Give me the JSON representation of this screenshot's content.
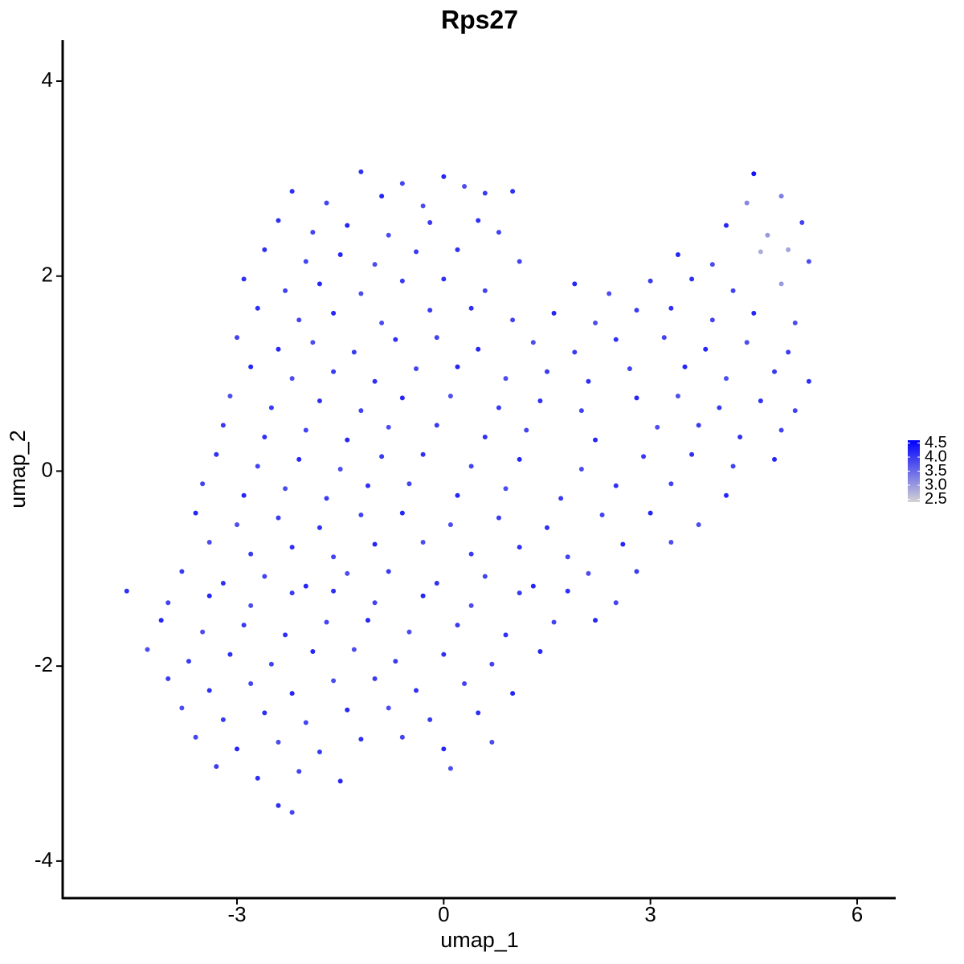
{
  "chart_data": {
    "type": "scatter",
    "title": "Rps27",
    "x_label": "umap_1",
    "y_label": "umap_2",
    "xlim": [
      -5.53,
      6.56
    ],
    "ylim": [
      -4.38,
      4.42
    ],
    "xticks": [
      -3,
      0,
      3,
      6
    ],
    "yticks": [
      -4,
      -2,
      0,
      2,
      4
    ],
    "color_low": "#d3d3d3",
    "color_high": "#0000ff",
    "color_lim": [
      2.4,
      4.6
    ],
    "color_ticks": [
      2.5,
      {
        "value": 3,
        "label": "3.0"
      },
      3.5,
      {
        "value": 4,
        "label": "4.0"
      },
      4.5
    ],
    "x": [
      -1.2,
      -0.6,
      0.0,
      0.3,
      4.5,
      -2.2,
      -1.7,
      -0.9,
      -0.3,
      0.6,
      1.0,
      4.4,
      4.9,
      -2.4,
      -1.9,
      -1.4,
      -0.8,
      -0.2,
      0.5,
      0.8,
      4.1,
      4.7,
      5.2,
      -2.6,
      -2.0,
      -1.5,
      -1.0,
      -0.4,
      0.2,
      1.1,
      3.4,
      3.9,
      4.6,
      5.0,
      5.3,
      -2.9,
      -2.3,
      -1.8,
      -1.2,
      -0.6,
      0.0,
      0.6,
      1.9,
      2.4,
      3.0,
      3.6,
      4.2,
      4.9,
      -2.7,
      -2.1,
      -1.6,
      -0.9,
      -0.2,
      0.4,
      1.0,
      1.6,
      2.2,
      2.8,
      3.3,
      3.9,
      4.5,
      5.1,
      -3.0,
      -2.4,
      -1.9,
      -1.3,
      -0.7,
      -0.1,
      0.5,
      1.3,
      1.9,
      2.5,
      3.2,
      3.8,
      4.4,
      5.0,
      -2.8,
      -2.2,
      -1.6,
      -1.0,
      -0.4,
      0.2,
      0.9,
      1.5,
      2.1,
      2.7,
      3.5,
      4.1,
      4.8,
      5.3,
      -3.1,
      -2.5,
      -1.8,
      -1.2,
      -0.6,
      0.1,
      0.8,
      1.4,
      2.0,
      2.8,
      3.4,
      4.0,
      4.6,
      5.1,
      -3.2,
      -2.6,
      -2.0,
      -1.4,
      -0.8,
      -0.1,
      0.6,
      1.2,
      2.2,
      3.1,
      3.7,
      4.3,
      4.9,
      -3.3,
      -2.7,
      -2.1,
      -1.5,
      -0.9,
      -0.3,
      0.4,
      1.1,
      2.0,
      2.9,
      3.6,
      4.2,
      4.8,
      -3.5,
      -2.9,
      -2.3,
      -1.7,
      -1.1,
      -0.5,
      0.2,
      0.9,
      1.7,
      2.5,
      3.3,
      4.1,
      -3.6,
      -3.0,
      -2.4,
      -1.8,
      -1.2,
      -0.6,
      0.1,
      0.8,
      1.5,
      2.3,
      3.0,
      3.7,
      -3.4,
      -2.8,
      -2.2,
      -1.6,
      -1.0,
      -0.3,
      0.4,
      1.1,
      1.8,
      2.6,
      3.3,
      -3.8,
      -3.2,
      -2.6,
      -2.0,
      -1.4,
      -0.8,
      -0.1,
      0.6,
      1.3,
      2.1,
      2.8,
      -4.6,
      -4.0,
      -3.4,
      -2.8,
      -2.2,
      -1.6,
      -1.0,
      -0.3,
      0.4,
      1.1,
      1.8,
      2.5,
      -4.1,
      -3.5,
      -2.9,
      -2.3,
      -1.7,
      -1.1,
      -0.5,
      0.2,
      0.9,
      1.6,
      2.2,
      -4.3,
      -3.7,
      -3.1,
      -2.5,
      -1.9,
      -1.3,
      -0.7,
      0.0,
      0.7,
      1.4,
      -4.0,
      -3.4,
      -2.8,
      -2.2,
      -1.6,
      -1.0,
      -0.4,
      0.3,
      1.0,
      -3.8,
      -3.2,
      -2.6,
      -2.0,
      -1.4,
      -0.8,
      -0.2,
      0.5,
      -3.6,
      -3.0,
      -2.4,
      -1.8,
      -1.2,
      -0.6,
      0.0,
      0.7,
      -3.3,
      -2.7,
      -2.1,
      -1.5,
      0.1,
      -2.4,
      -2.2
    ],
    "y": [
      3.07,
      2.95,
      3.02,
      2.92,
      3.05,
      2.87,
      2.75,
      2.82,
      2.72,
      2.85,
      2.87,
      2.75,
      2.82,
      2.57,
      2.45,
      2.52,
      2.42,
      2.55,
      2.57,
      2.45,
      2.52,
      2.42,
      2.55,
      2.27,
      2.15,
      2.22,
      2.12,
      2.25,
      2.27,
      2.15,
      2.22,
      2.12,
      2.25,
      2.27,
      2.15,
      1.97,
      1.85,
      1.92,
      1.82,
      1.95,
      1.97,
      1.85,
      1.92,
      1.82,
      1.95,
      1.97,
      1.85,
      1.92,
      1.67,
      1.55,
      1.62,
      1.52,
      1.65,
      1.67,
      1.55,
      1.62,
      1.52,
      1.65,
      1.67,
      1.55,
      1.62,
      1.52,
      1.37,
      1.25,
      1.32,
      1.22,
      1.35,
      1.37,
      1.25,
      1.32,
      1.22,
      1.35,
      1.37,
      1.25,
      1.32,
      1.22,
      1.07,
      0.95,
      1.02,
      0.92,
      1.05,
      1.07,
      0.95,
      1.02,
      0.92,
      1.05,
      1.07,
      0.95,
      1.02,
      0.92,
      0.77,
      0.65,
      0.72,
      0.62,
      0.75,
      0.77,
      0.65,
      0.72,
      0.62,
      0.75,
      0.77,
      0.65,
      0.72,
      0.62,
      0.47,
      0.35,
      0.42,
      0.32,
      0.45,
      0.47,
      0.35,
      0.42,
      0.32,
      0.45,
      0.47,
      0.35,
      0.42,
      0.17,
      0.05,
      0.12,
      0.02,
      0.15,
      0.17,
      0.05,
      0.12,
      0.02,
      0.15,
      0.17,
      0.05,
      0.12,
      -0.13,
      -0.25,
      -0.18,
      -0.28,
      -0.15,
      -0.13,
      -0.25,
      -0.18,
      -0.28,
      -0.15,
      -0.13,
      -0.25,
      -0.43,
      -0.55,
      -0.48,
      -0.58,
      -0.45,
      -0.43,
      -0.55,
      -0.48,
      -0.58,
      -0.45,
      -0.43,
      -0.55,
      -0.73,
      -0.85,
      -0.78,
      -0.88,
      -0.75,
      -0.73,
      -0.85,
      -0.78,
      -0.88,
      -0.75,
      -0.73,
      -1.03,
      -1.15,
      -1.08,
      -1.18,
      -1.05,
      -1.03,
      -1.15,
      -1.08,
      -1.18,
      -1.05,
      -1.03,
      -1.23,
      -1.35,
      -1.28,
      -1.38,
      -1.25,
      -1.23,
      -1.35,
      -1.28,
      -1.38,
      -1.25,
      -1.23,
      -1.35,
      -1.53,
      -1.65,
      -1.58,
      -1.68,
      -1.55,
      -1.53,
      -1.65,
      -1.58,
      -1.68,
      -1.55,
      -1.53,
      -1.83,
      -1.95,
      -1.88,
      -1.98,
      -1.85,
      -1.83,
      -1.95,
      -1.88,
      -1.98,
      -1.85,
      -2.13,
      -2.25,
      -2.18,
      -2.28,
      -2.15,
      -2.13,
      -2.25,
      -2.18,
      -2.28,
      -2.43,
      -2.55,
      -2.48,
      -2.58,
      -2.45,
      -2.43,
      -2.55,
      -2.48,
      -2.73,
      -2.85,
      -2.78,
      -2.88,
      -2.75,
      -2.73,
      -2.85,
      -2.78,
      -3.03,
      -3.15,
      -3.08,
      -3.18,
      -3.05,
      -3.43,
      -3.5
    ],
    "values": [
      4.1,
      3.9,
      4.2,
      3.8,
      4.4,
      4.1,
      3.9,
      4.2,
      3.8,
      4.0,
      4.1,
      3.2,
      3.3,
      4.1,
      3.9,
      4.2,
      3.8,
      4.0,
      4.1,
      3.9,
      4.2,
      3.0,
      3.9,
      4.1,
      3.9,
      4.2,
      3.8,
      4.0,
      4.1,
      3.9,
      4.2,
      3.8,
      2.8,
      2.9,
      3.8,
      4.1,
      3.9,
      4.2,
      3.8,
      4.0,
      4.1,
      3.9,
      4.2,
      3.8,
      4.0,
      4.1,
      3.9,
      3.0,
      4.1,
      3.9,
      4.2,
      3.8,
      4.0,
      4.1,
      3.9,
      4.2,
      3.8,
      4.0,
      4.1,
      3.9,
      4.2,
      3.8,
      3.9,
      4.2,
      3.8,
      4.0,
      4.1,
      3.9,
      4.2,
      3.8,
      4.0,
      4.1,
      3.9,
      4.2,
      3.8,
      4.0,
      4.2,
      3.8,
      4.0,
      4.1,
      3.9,
      4.2,
      3.8,
      4.0,
      4.1,
      3.9,
      4.2,
      3.8,
      4.0,
      4.1,
      3.8,
      4.0,
      4.1,
      3.9,
      4.2,
      3.8,
      4.0,
      4.1,
      3.9,
      4.2,
      3.8,
      4.0,
      4.1,
      3.9,
      4.0,
      4.1,
      3.9,
      4.2,
      3.8,
      4.0,
      4.1,
      3.9,
      4.2,
      3.8,
      4.0,
      4.1,
      3.9,
      4.1,
      3.9,
      4.2,
      3.8,
      4.0,
      4.1,
      3.9,
      4.2,
      3.8,
      4.0,
      4.1,
      3.9,
      4.2,
      3.9,
      4.2,
      3.8,
      4.0,
      4.1,
      3.9,
      4.2,
      3.8,
      4.0,
      4.1,
      3.9,
      4.2,
      4.2,
      3.8,
      4.0,
      4.1,
      3.9,
      4.2,
      3.8,
      4.0,
      4.1,
      3.9,
      4.2,
      3.8,
      3.8,
      4.0,
      4.1,
      3.9,
      4.2,
      3.8,
      4.0,
      4.1,
      3.9,
      4.2,
      3.8,
      4.0,
      4.1,
      3.9,
      4.2,
      3.8,
      4.0,
      4.1,
      3.9,
      4.2,
      3.8,
      4.0,
      4.1,
      3.9,
      4.2,
      3.8,
      4.0,
      4.1,
      3.9,
      4.2,
      3.8,
      4.0,
      4.1,
      3.9,
      4.2,
      3.8,
      4.0,
      4.1,
      3.9,
      4.2,
      3.8,
      4.0,
      4.1,
      3.9,
      4.2,
      3.8,
      4.0,
      4.1,
      3.9,
      4.2,
      3.8,
      4.0,
      4.1,
      3.9,
      4.2,
      4.0,
      4.1,
      3.9,
      4.2,
      3.8,
      4.0,
      4.1,
      3.9,
      4.2,
      3.8,
      4.0,
      4.1,
      3.9,
      4.2,
      3.8,
      4.0,
      4.1,
      3.9,
      4.2,
      3.8,
      4.0,
      4.1,
      3.9,
      4.2,
      3.8,
      4.0,
      4.1,
      3.9,
      4.2,
      3.8,
      4.1,
      3.9
    ]
  }
}
